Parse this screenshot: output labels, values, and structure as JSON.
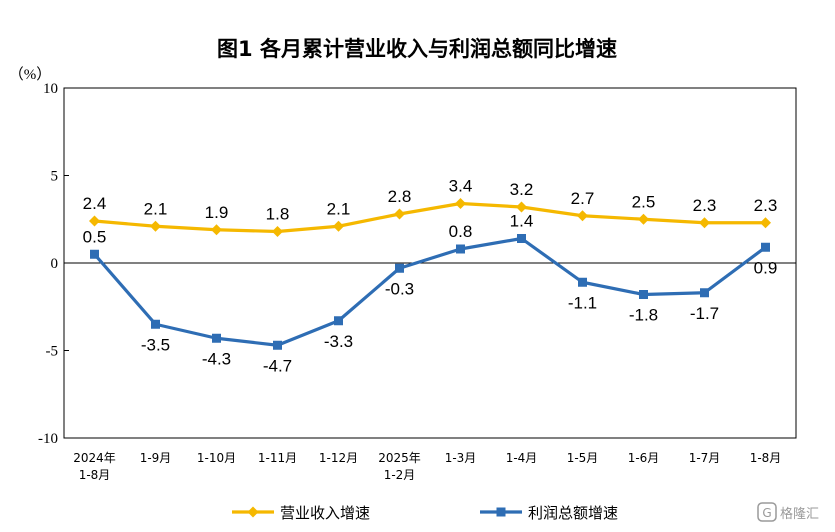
{
  "chart_data": {
    "type": "line",
    "title": "图1  各月累计营业收入与利润总额同比增速",
    "ylabel": "（%）",
    "ylim": [
      -10,
      10
    ],
    "yticks": [
      10,
      5,
      0,
      -5,
      -10
    ],
    "categories": [
      [
        "2024年",
        "1-8月"
      ],
      [
        "1-9月"
      ],
      [
        "1-10月"
      ],
      [
        "1-11月"
      ],
      [
        "1-12月"
      ],
      [
        "2025年",
        "1-2月"
      ],
      [
        "1-3月"
      ],
      [
        "1-4月"
      ],
      [
        "1-5月"
      ],
      [
        "1-6月"
      ],
      [
        "1-7月"
      ],
      [
        "1-8月"
      ]
    ],
    "series": [
      {
        "name": "营业收入增速",
        "color": "#F5B800",
        "marker": "diamond",
        "values": [
          2.4,
          2.1,
          1.9,
          1.8,
          2.1,
          2.8,
          3.4,
          3.2,
          2.7,
          2.5,
          2.3,
          2.3
        ],
        "labels": [
          "2.4",
          "2.1",
          "1.9",
          "1.8",
          "2.1",
          "2.8",
          "3.4",
          "3.2",
          "2.7",
          "2.5",
          "2.3",
          "2.3"
        ],
        "label_position": "above"
      },
      {
        "name": "利润总额增速",
        "color": "#2E6DB4",
        "marker": "square",
        "values": [
          0.5,
          -3.5,
          -4.3,
          -4.7,
          -3.3,
          -0.3,
          0.8,
          1.4,
          -1.1,
          -1.8,
          -1.7,
          0.9
        ],
        "labels": [
          "0.5",
          "-3.5",
          "-4.3",
          "-4.7",
          "-3.3",
          "-0.3",
          "0.8",
          "1.4",
          "-1.1",
          "-1.8",
          "-1.7",
          "0.9"
        ],
        "label_position": [
          "above",
          "below",
          "below",
          "below",
          "below",
          "below",
          "above",
          "above",
          "below",
          "below",
          "below",
          "below"
        ]
      }
    ],
    "legend": "bottom",
    "grid": false
  },
  "watermark": "格隆汇"
}
